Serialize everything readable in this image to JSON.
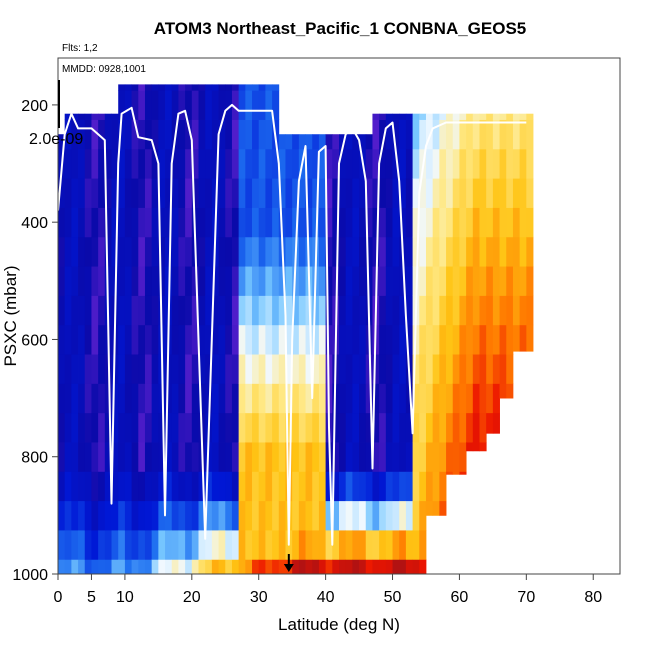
{
  "chart_data": {
    "type": "heatmap",
    "title": "ATOM3 Northeast_Pacific_1 CONBNA_GEOS5",
    "annotations": [
      "Flts: 1,2",
      "MMDD: 0928,1001"
    ],
    "colorbar_label": "2.0e-09",
    "xlabel": "Latitude (deg N)",
    "ylabel": "PSXC (mbar)",
    "xlim": [
      0,
      84
    ],
    "ylim": [
      1000,
      120
    ],
    "x_ticks": [
      "0",
      "5",
      "10",
      "20",
      "30",
      "40",
      "50",
      "60",
      "70",
      "80"
    ],
    "x_tick_values": [
      0,
      5,
      10,
      20,
      30,
      40,
      50,
      60,
      70,
      80
    ],
    "y_ticks": [
      "200",
      "400",
      "600",
      "800",
      "1000"
    ],
    "y_tick_values": [
      200,
      400,
      600,
      800,
      1000
    ],
    "marker_latitude": 34.5,
    "pressure_levels": [
      1000,
      950,
      900,
      850,
      800,
      750,
      700,
      650,
      600,
      550,
      500,
      450,
      400,
      350,
      300,
      250,
      200,
      150
    ],
    "latitudes": [
      0,
      2.5,
      5,
      7.5,
      10,
      12.5,
      15,
      17.5,
      20,
      22.5,
      25,
      27.5,
      30,
      32.5,
      35,
      37.5,
      40,
      42.5,
      45,
      47.5,
      50,
      52.5,
      55,
      57.5,
      60,
      62.5,
      65,
      67.5,
      70
    ],
    "flight_track": [
      [
        0,
        380
      ],
      [
        1,
        250
      ],
      [
        2,
        215
      ],
      [
        3,
        240
      ],
      [
        5,
        240
      ],
      [
        7,
        260
      ],
      [
        8,
        880
      ],
      [
        9,
        300
      ],
      [
        9.5,
        215
      ],
      [
        11,
        205
      ],
      [
        12,
        255
      ],
      [
        14,
        260
      ],
      [
        15,
        300
      ],
      [
        16,
        900
      ],
      [
        17,
        300
      ],
      [
        18,
        215
      ],
      [
        19,
        210
      ],
      [
        20,
        260
      ],
      [
        22,
        940
      ],
      [
        24,
        250
      ],
      [
        25,
        210
      ],
      [
        26,
        200
      ],
      [
        27,
        210
      ],
      [
        32,
        210
      ],
      [
        33,
        300
      ],
      [
        34,
        560
      ],
      [
        34.5,
        950
      ],
      [
        35,
        600
      ],
      [
        36,
        330
      ],
      [
        37,
        270
      ],
      [
        38,
        700
      ],
      [
        39,
        280
      ],
      [
        40,
        270
      ],
      [
        40.5,
        750
      ],
      [
        41,
        950
      ],
      [
        42,
        300
      ],
      [
        43,
        250
      ],
      [
        44,
        240
      ],
      [
        45,
        260
      ],
      [
        46,
        330
      ],
      [
        47,
        820
      ],
      [
        48,
        300
      ],
      [
        49,
        240
      ],
      [
        50,
        230
      ],
      [
        51,
        330
      ],
      [
        52,
        560
      ],
      [
        53,
        760
      ],
      [
        54,
        350
      ],
      [
        55,
        270
      ],
      [
        56,
        240
      ],
      [
        58,
        230
      ],
      [
        65,
        230
      ],
      [
        70,
        230
      ]
    ]
  }
}
